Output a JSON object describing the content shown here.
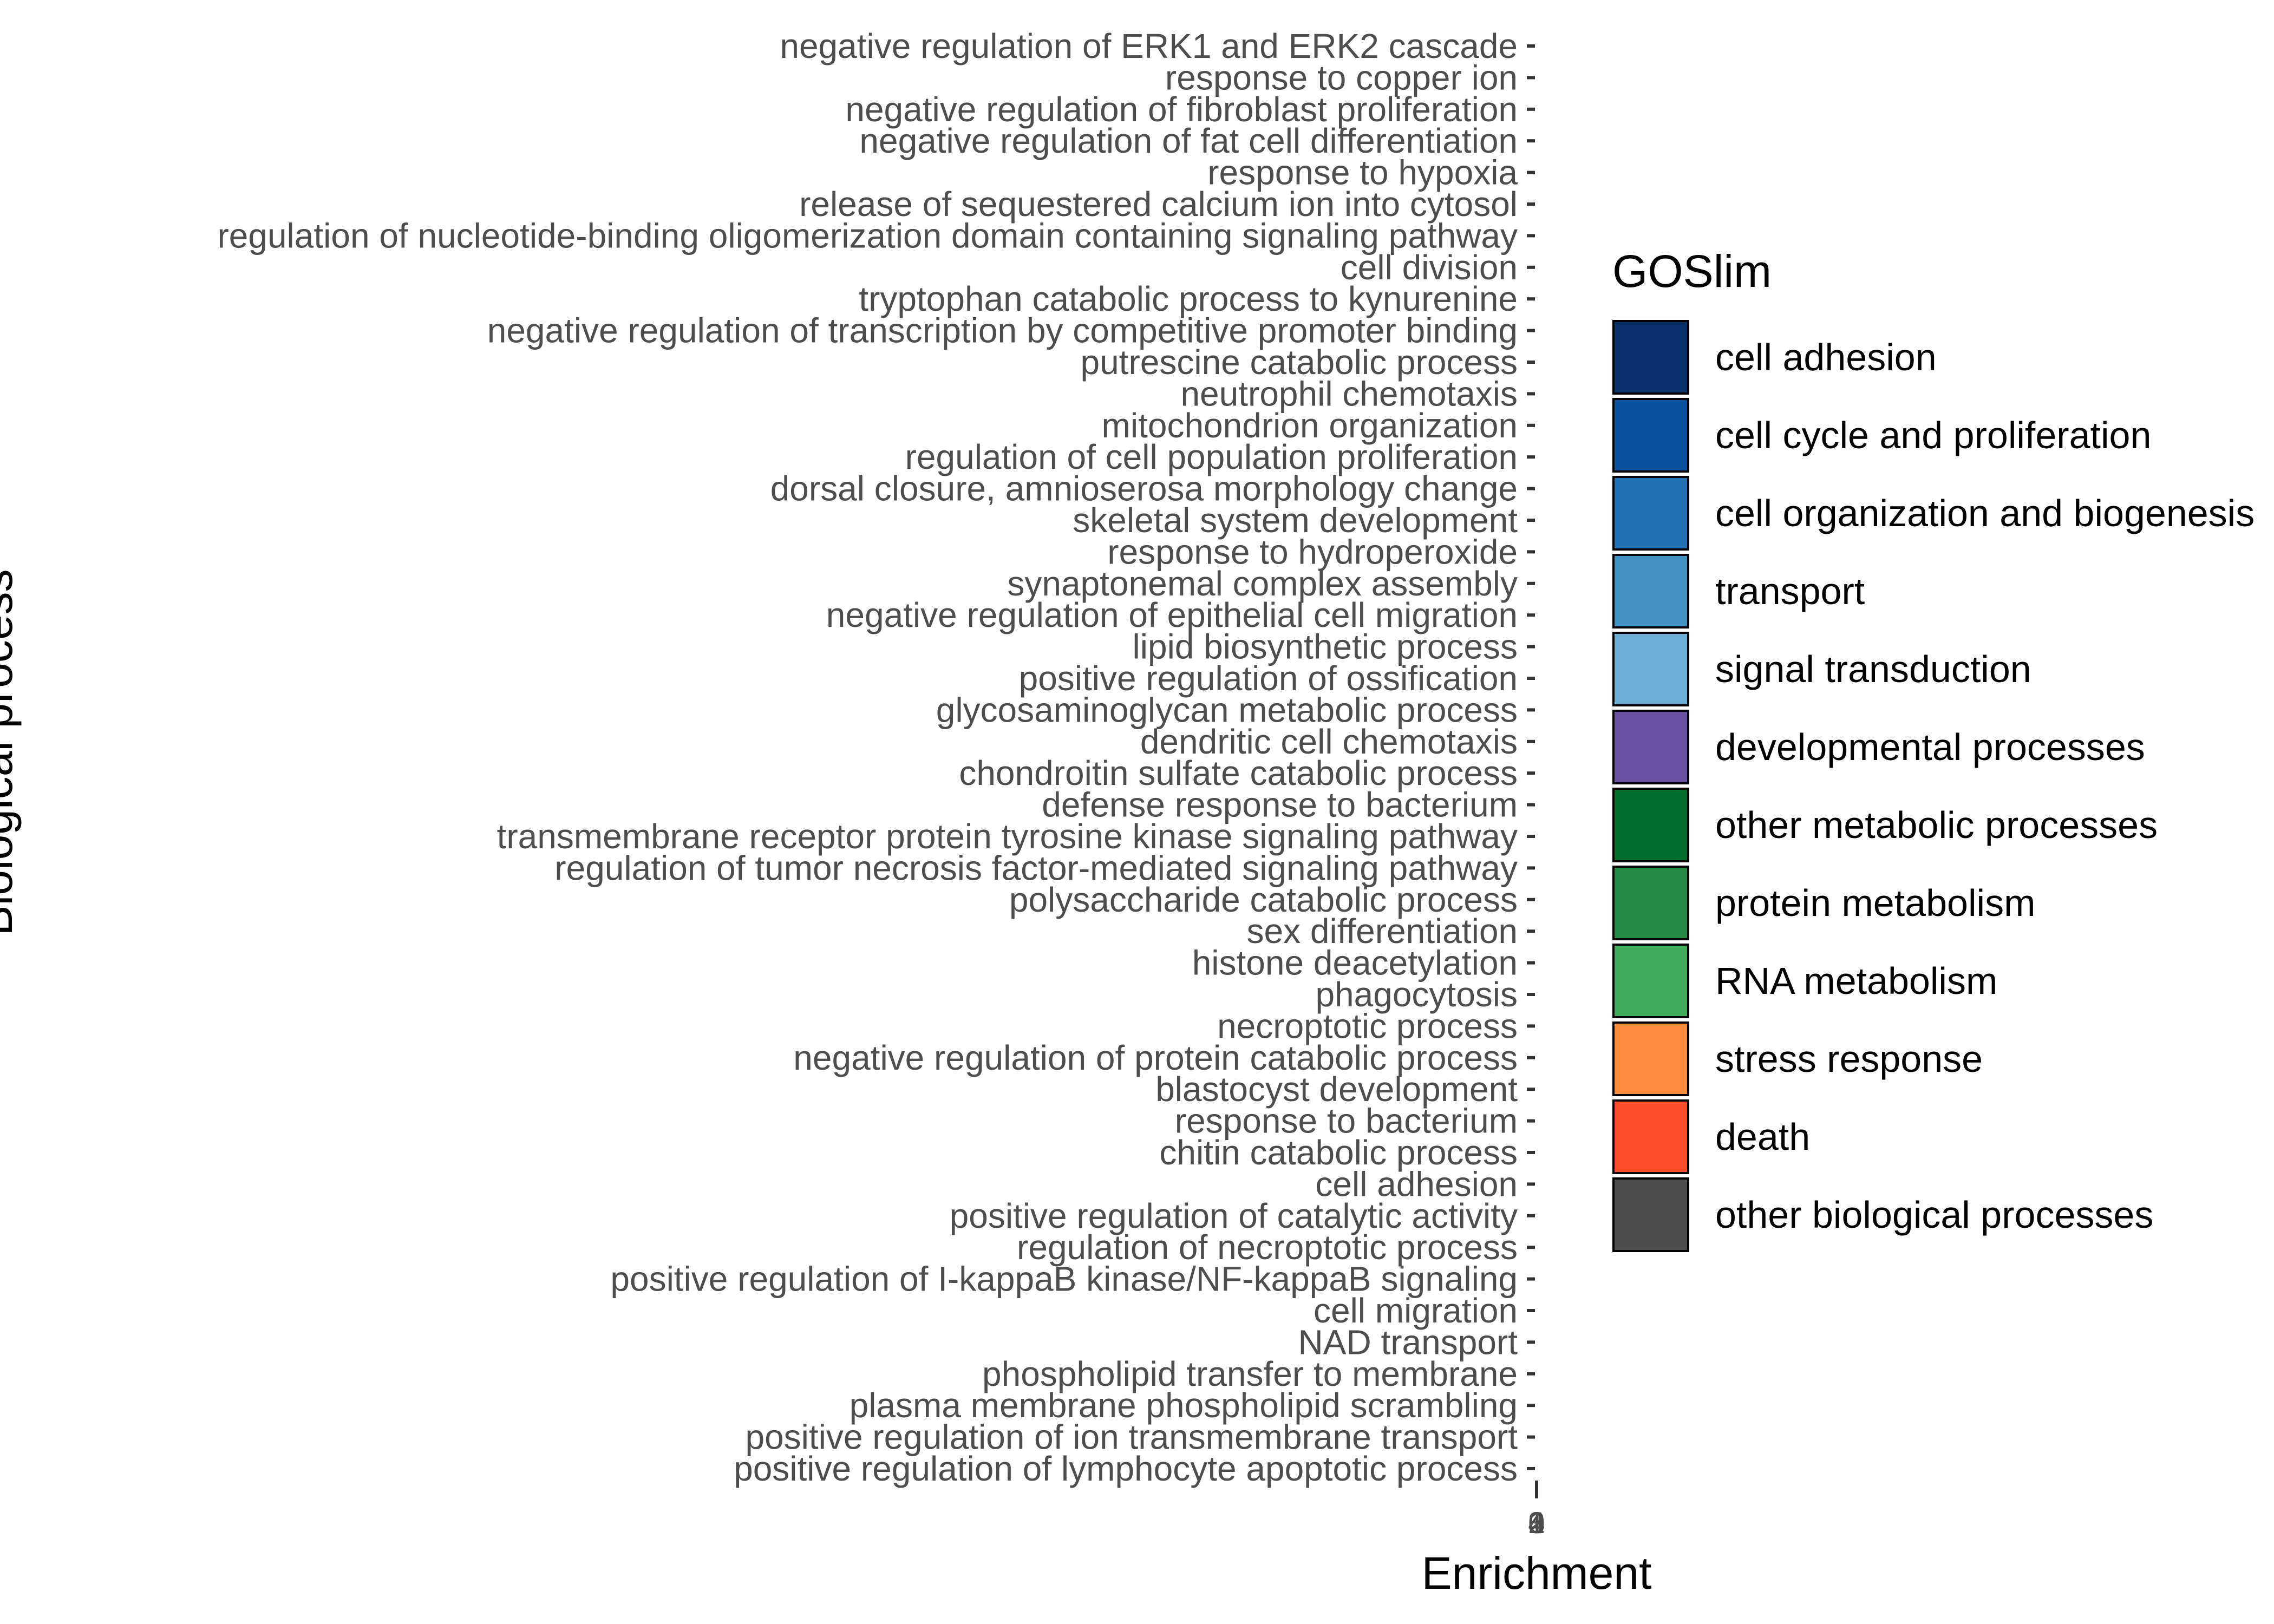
{
  "chart_data": {
    "type": "bar",
    "orientation": "horizontal",
    "xlabel": "Enrichment",
    "ylabel": "Biological process",
    "x_tick_labels": [
      "0",
      "1",
      "2",
      "3",
      "4"
    ],
    "categories": [
      "negative regulation of ERK1 and ERK2 cascade",
      "response to copper ion",
      "negative regulation of fibroblast proliferation",
      "negative regulation of fat cell differentiation",
      "response to hypoxia",
      "release of sequestered calcium ion into cytosol",
      "regulation of nucleotide-binding oligomerization domain containing signaling pathway",
      "cell division",
      "tryptophan catabolic process to kynurenine",
      "negative regulation of transcription by competitive promoter binding",
      "putrescine catabolic process",
      "neutrophil chemotaxis",
      "mitochondrion organization",
      "regulation of cell population proliferation",
      "dorsal closure, amnioserosa morphology change",
      "skeletal system development",
      "response to hydroperoxide",
      "synaptonemal complex assembly",
      "negative regulation of epithelial cell migration",
      "lipid biosynthetic process",
      "positive regulation of ossification",
      "glycosaminoglycan metabolic process",
      "dendritic cell chemotaxis",
      "chondroitin sulfate catabolic process",
      "defense response to bacterium",
      "transmembrane receptor protein tyrosine kinase signaling pathway",
      "regulation of tumor necrosis factor-mediated signaling pathway",
      "polysaccharide catabolic process",
      "sex differentiation",
      "histone deacetylation",
      "phagocytosis",
      "necroptotic process",
      "negative regulation of protein catabolic process",
      "blastocyst development",
      "response to bacterium",
      "chitin catabolic process",
      "cell adhesion",
      "positive regulation of catalytic activity",
      "regulation of necroptotic process",
      "positive regulation of I-kappaB kinase/NF-kappaB signaling",
      "cell migration",
      "NAD transport",
      "phospholipid transfer to membrane",
      "plasma membrane phospholipid scrambling",
      "positive regulation of ion transmembrane transport",
      "positive regulation of lymphocyte apoptotic process"
    ],
    "legend": {
      "title": "GOSlim",
      "position": "right",
      "items": [
        {
          "label": "cell adhesion",
          "color": "#08306b"
        },
        {
          "label": "cell cycle and proliferation",
          "color": "#08519c"
        },
        {
          "label": "cell organization and biogenesis",
          "color": "#2171b5"
        },
        {
          "label": "transport",
          "color": "#4292c6"
        },
        {
          "label": "signal transduction",
          "color": "#6baed6"
        },
        {
          "label": "developmental processes",
          "color": "#6a51a3"
        },
        {
          "label": "other metabolic processes",
          "color": "#006d2c"
        },
        {
          "label": "protein metabolism",
          "color": "#238b45"
        },
        {
          "label": "RNA metabolism",
          "color": "#41ab5d"
        },
        {
          "label": "stress response",
          "color": "#fd8d3c"
        },
        {
          "label": "death",
          "color": "#fc4e2a"
        },
        {
          "label": "other biological processes",
          "color": "#4d4d4d"
        }
      ]
    },
    "grid": false
  }
}
